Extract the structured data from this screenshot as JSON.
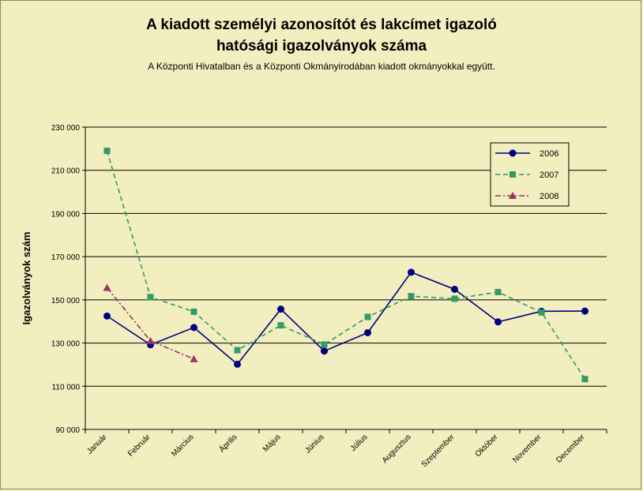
{
  "chart_data": {
    "type": "line",
    "title": "A kiadott személyi azonosítót és lakcímet igazoló hatósági igazolványok száma",
    "title_lines": [
      "A kiadott személyi azonosítót és lakcímet igazoló",
      "hatósági igazolványok száma"
    ],
    "subtitle": "A Központi Hivatalban és a Központi Okmányirodában kiadott okmányokkal együtt.",
    "xlabel": "",
    "ylabel": "Igazolványok szám",
    "categories": [
      "Január",
      "Február",
      "Március",
      "Április",
      "Május",
      "Június",
      "Július",
      "Augusztus",
      "Szeptember",
      "Október",
      "November",
      "December"
    ],
    "ylim": [
      90000,
      230000
    ],
    "yticks": [
      90000,
      110000,
      130000,
      150000,
      170000,
      190000,
      210000,
      230000
    ],
    "ytick_labels": [
      "90 000",
      "110 000",
      "130 000",
      "150 000",
      "170 000",
      "190 000",
      "210 000",
      "230 000"
    ],
    "grid": true,
    "legend_position": "top-right",
    "series": [
      {
        "name": "2006",
        "color": "#00007f",
        "marker": "circle",
        "line_style": "solid",
        "values": [
          142500,
          129200,
          137200,
          120200,
          145700,
          126300,
          134800,
          162800,
          154900,
          139800,
          144700,
          144800
        ]
      },
      {
        "name": "2007",
        "color": "#339966",
        "marker": "square",
        "line_style": "dashed",
        "values": [
          219000,
          151300,
          144500,
          126700,
          138200,
          129300,
          142100,
          151700,
          150500,
          153600,
          144200,
          113300
        ]
      },
      {
        "name": "2008",
        "color": "#993366",
        "marker": "triangle",
        "line_style": "dash-dot",
        "values": [
          155600,
          131000,
          122600,
          null,
          null,
          null,
          null,
          null,
          null,
          null,
          null,
          null
        ]
      }
    ]
  }
}
